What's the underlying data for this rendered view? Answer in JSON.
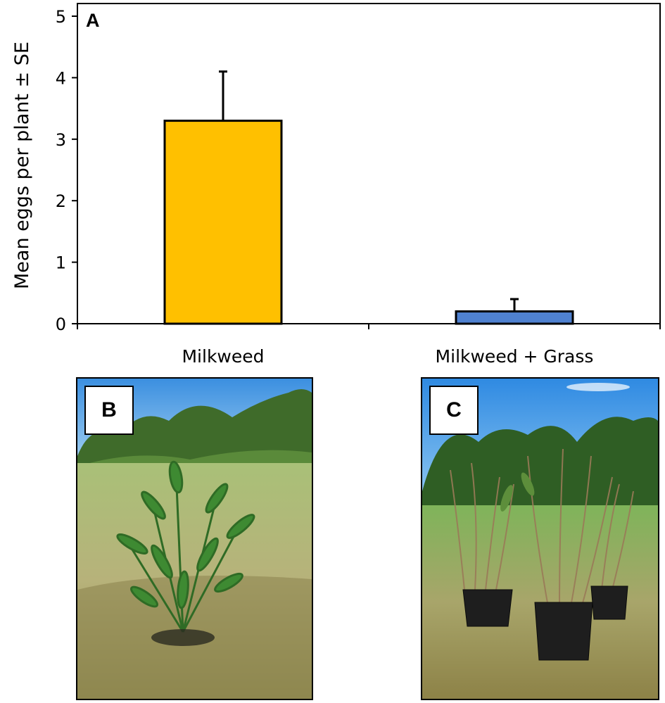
{
  "panels": {
    "a_label": "A",
    "b_label": "B",
    "c_label": "C"
  },
  "chart_data": {
    "type": "bar",
    "title": "",
    "xlabel": "",
    "ylabel": "Mean eggs per plant ± SE",
    "categories": [
      "Milkweed",
      "Milkweed + Grass"
    ],
    "values": [
      3.3,
      0.2
    ],
    "errors": [
      0.8,
      0.2
    ],
    "colors": [
      "#FFC000",
      "#4F81D0"
    ],
    "ylim": [
      0,
      5
    ],
    "yticks": [
      "0",
      "1",
      "2",
      "3",
      "4",
      "5"
    ],
    "grid": false,
    "legend": "none"
  },
  "photos": [
    {
      "label": "B",
      "subject": "milkweed plant in field"
    },
    {
      "label": "C",
      "subject": "potted milkweed with grass in field"
    }
  ]
}
